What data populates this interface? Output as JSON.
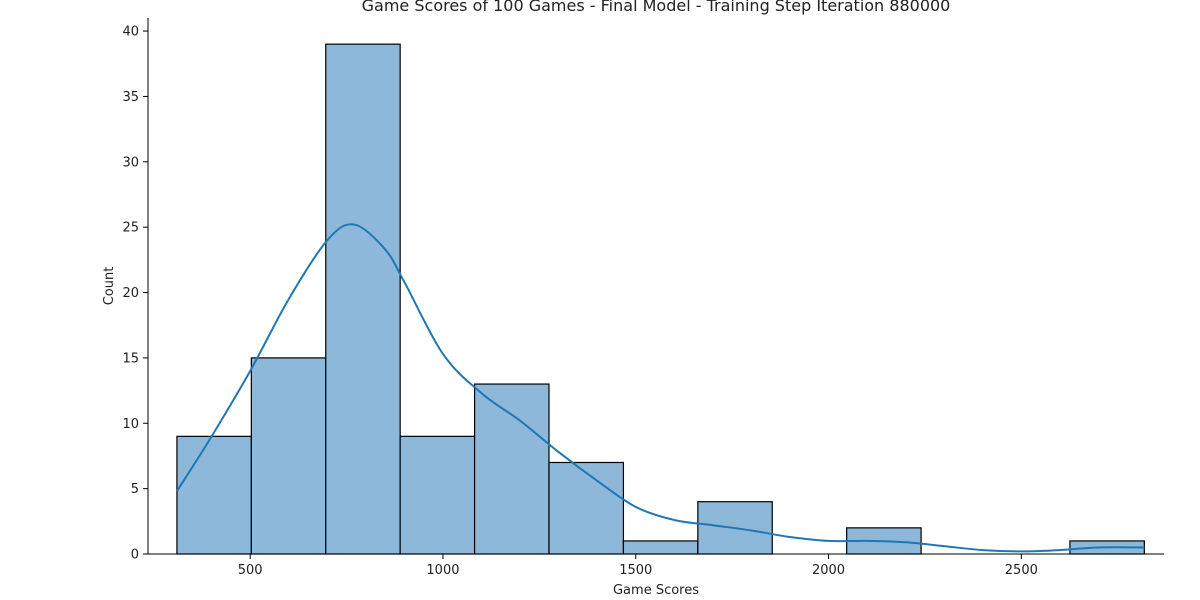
{
  "chart_data": {
    "type": "bar",
    "title": "Game Scores of 100 Games - Final Model - Training Step Iteration 880000",
    "xlabel": "Game Scores",
    "ylabel": "Count",
    "xlim": [
      235,
      2870
    ],
    "ylim": [
      0,
      41
    ],
    "xticks": [
      500,
      1000,
      1500,
      2000,
      2500
    ],
    "yticks": [
      0,
      5,
      10,
      15,
      20,
      25,
      30,
      35,
      40
    ],
    "bins": [
      {
        "start": 310,
        "end": 503,
        "count": 9
      },
      {
        "start": 503,
        "end": 696,
        "count": 15
      },
      {
        "start": 696,
        "end": 889,
        "count": 39
      },
      {
        "start": 889,
        "end": 1082,
        "count": 9
      },
      {
        "start": 1082,
        "end": 1275,
        "count": 13
      },
      {
        "start": 1275,
        "end": 1468,
        "count": 7
      },
      {
        "start": 1468,
        "end": 1661,
        "count": 1
      },
      {
        "start": 1661,
        "end": 1854,
        "count": 4
      },
      {
        "start": 1854,
        "end": 2047,
        "count": 0
      },
      {
        "start": 2047,
        "end": 2240,
        "count": 2
      },
      {
        "start": 2240,
        "end": 2433,
        "count": 0
      },
      {
        "start": 2433,
        "end": 2626,
        "count": 0
      },
      {
        "start": 2626,
        "end": 2819,
        "count": 1
      }
    ],
    "kde": {
      "x": [
        310,
        400,
        500,
        600,
        700,
        770,
        850,
        900,
        1000,
        1100,
        1200,
        1300,
        1400,
        1500,
        1600,
        1700,
        1800,
        1900,
        2000,
        2100,
        2200,
        2300,
        2400,
        2500,
        2600,
        2700,
        2819
      ],
      "y": [
        4.8,
        9.0,
        14.0,
        19.5,
        24.0,
        25.2,
        23.3,
        20.8,
        15.3,
        12.3,
        10.2,
        7.8,
        5.6,
        3.6,
        2.6,
        2.2,
        1.8,
        1.3,
        1.0,
        1.0,
        0.9,
        0.6,
        0.3,
        0.2,
        0.3,
        0.5,
        0.5
      ]
    },
    "grid": false,
    "colors": {
      "bar_fill": "#8db8da",
      "bar_edge": "#000000",
      "kde_line": "#1f77b4",
      "axis": "#000000"
    }
  }
}
